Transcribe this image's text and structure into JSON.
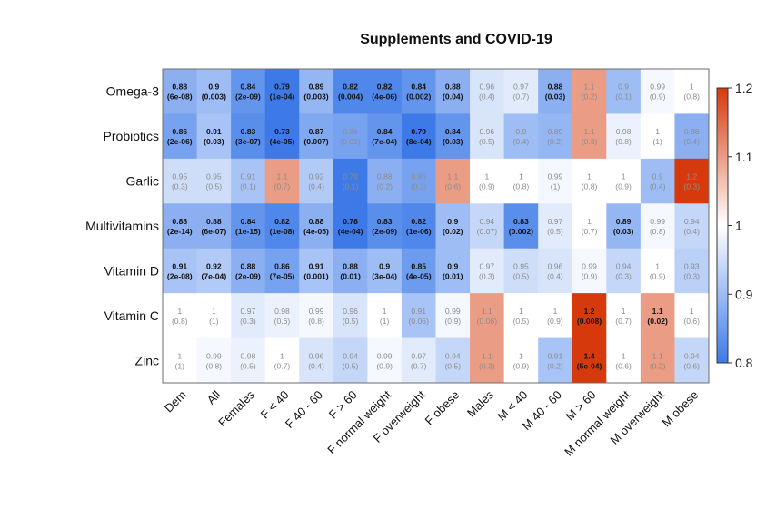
{
  "chart_data": {
    "type": "heatmap",
    "title": "Supplements and COVID-19",
    "xlabel": "",
    "ylabel": "",
    "rows": [
      "Omega-3",
      "Probiotics",
      "Garlic",
      "Multivitamins",
      "Vitamin D",
      "Vitamin C",
      "Zinc"
    ],
    "columns": [
      "Dem",
      "All",
      "Females",
      "F < 40",
      "F 40 - 60",
      "F > 60",
      "F normal weight",
      "F overweight",
      "F obese",
      "Males",
      "M < 40",
      "M 40 - 60",
      "M > 60",
      "M normal weight",
      "M overweight",
      "M obese"
    ],
    "values": [
      [
        0.88,
        0.9,
        0.84,
        0.79,
        0.89,
        0.82,
        0.82,
        0.84,
        0.88,
        0.96,
        0.97,
        0.88,
        1.1,
        0.9,
        0.99,
        1
      ],
      [
        0.86,
        0.91,
        0.83,
        0.73,
        0.87,
        0.86,
        0.84,
        0.79,
        0.84,
        0.96,
        0.9,
        0.89,
        1.1,
        0.98,
        1,
        0.88
      ],
      [
        0.95,
        0.95,
        0.91,
        1.1,
        0.92,
        0.79,
        0.88,
        0.86,
        1.1,
        1,
        1,
        0.99,
        1,
        1,
        0.9,
        1.2
      ],
      [
        0.88,
        0.88,
        0.84,
        0.82,
        0.88,
        0.78,
        0.83,
        0.82,
        0.9,
        0.94,
        0.83,
        0.97,
        1,
        0.89,
        0.99,
        0.94
      ],
      [
        0.91,
        0.92,
        0.88,
        0.86,
        0.91,
        0.88,
        0.9,
        0.85,
        0.9,
        0.97,
        0.95,
        0.96,
        0.99,
        0.94,
        1,
        0.93
      ],
      [
        1,
        1,
        0.97,
        0.98,
        0.99,
        0.96,
        1,
        0.91,
        0.99,
        1.1,
        1,
        1,
        1.2,
        1,
        1.1,
        1
      ],
      [
        1,
        0.99,
        0.98,
        1,
        0.96,
        0.94,
        0.99,
        0.97,
        0.94,
        1.1,
        1,
        0.91,
        1.4,
        1,
        1.1,
        0.94
      ]
    ],
    "p_values": [
      [
        "6e-08",
        "0.003",
        "2e-09",
        "1e-04",
        "0.003",
        "0.004",
        "4e-06",
        "0.002",
        "0.04",
        "0.4",
        "0.7",
        "0.03",
        "0.2",
        "0.1",
        "0.9",
        "0.8"
      ],
      [
        "2e-06",
        "0.03",
        "3e-07",
        "4e-05",
        "0.007",
        "0.09",
        "7e-04",
        "8e-04",
        "0.03",
        "0.5",
        "0.4",
        "0.2",
        "0.3",
        "0.8",
        "1",
        "0.4"
      ],
      [
        "0.3",
        "0.5",
        "0.1",
        "0.7",
        "0.4",
        "0.1",
        "0.2",
        "0.2",
        "0.6",
        "0.9",
        "0.8",
        "1",
        "0.8",
        "0.9",
        "0.4",
        "0.3"
      ],
      [
        "2e-14",
        "6e-07",
        "1e-15",
        "1e-08",
        "4e-05",
        "4e-04",
        "2e-09",
        "1e-06",
        "0.02",
        "0.07",
        "0.002",
        "0.5",
        "0.7",
        "0.03",
        "0.8",
        "0.4"
      ],
      [
        "2e-08",
        "7e-04",
        "2e-09",
        "7e-05",
        "0.001",
        "0.01",
        "3e-04",
        "4e-05",
        "0.01",
        "0.3",
        "0.5",
        "0.4",
        "0.9",
        "0.3",
        "0.9",
        "0.3"
      ],
      [
        "0.8",
        "1",
        "0.3",
        "0.6",
        "0.8",
        "0.5",
        "1",
        "0.06",
        "0.9",
        "0.06",
        "0.5",
        "0.9",
        "0.008",
        "0.7",
        "0.02",
        "0.6"
      ],
      [
        "1",
        "0.8",
        "0.5",
        "0.7",
        "0.4",
        "0.5",
        "0.9",
        "0.7",
        "0.5",
        "0.3",
        "0.9",
        "0.2",
        "5e-04",
        "0.6",
        "0.2",
        "0.6"
      ]
    ],
    "significance_threshold": 0.05,
    "colorbar": {
      "range": [
        0.8,
        1.2
      ],
      "ticks": [
        0.8,
        0.9,
        1,
        1.1,
        1.2
      ],
      "tick_labels": [
        "0.8",
        "0.9",
        "1",
        "1.1",
        "1.2"
      ],
      "low_color": "#3d7ae8",
      "mid_color": "#ffffff",
      "high_color": "#d63a0c",
      "placement": "right"
    },
    "grid": false
  }
}
